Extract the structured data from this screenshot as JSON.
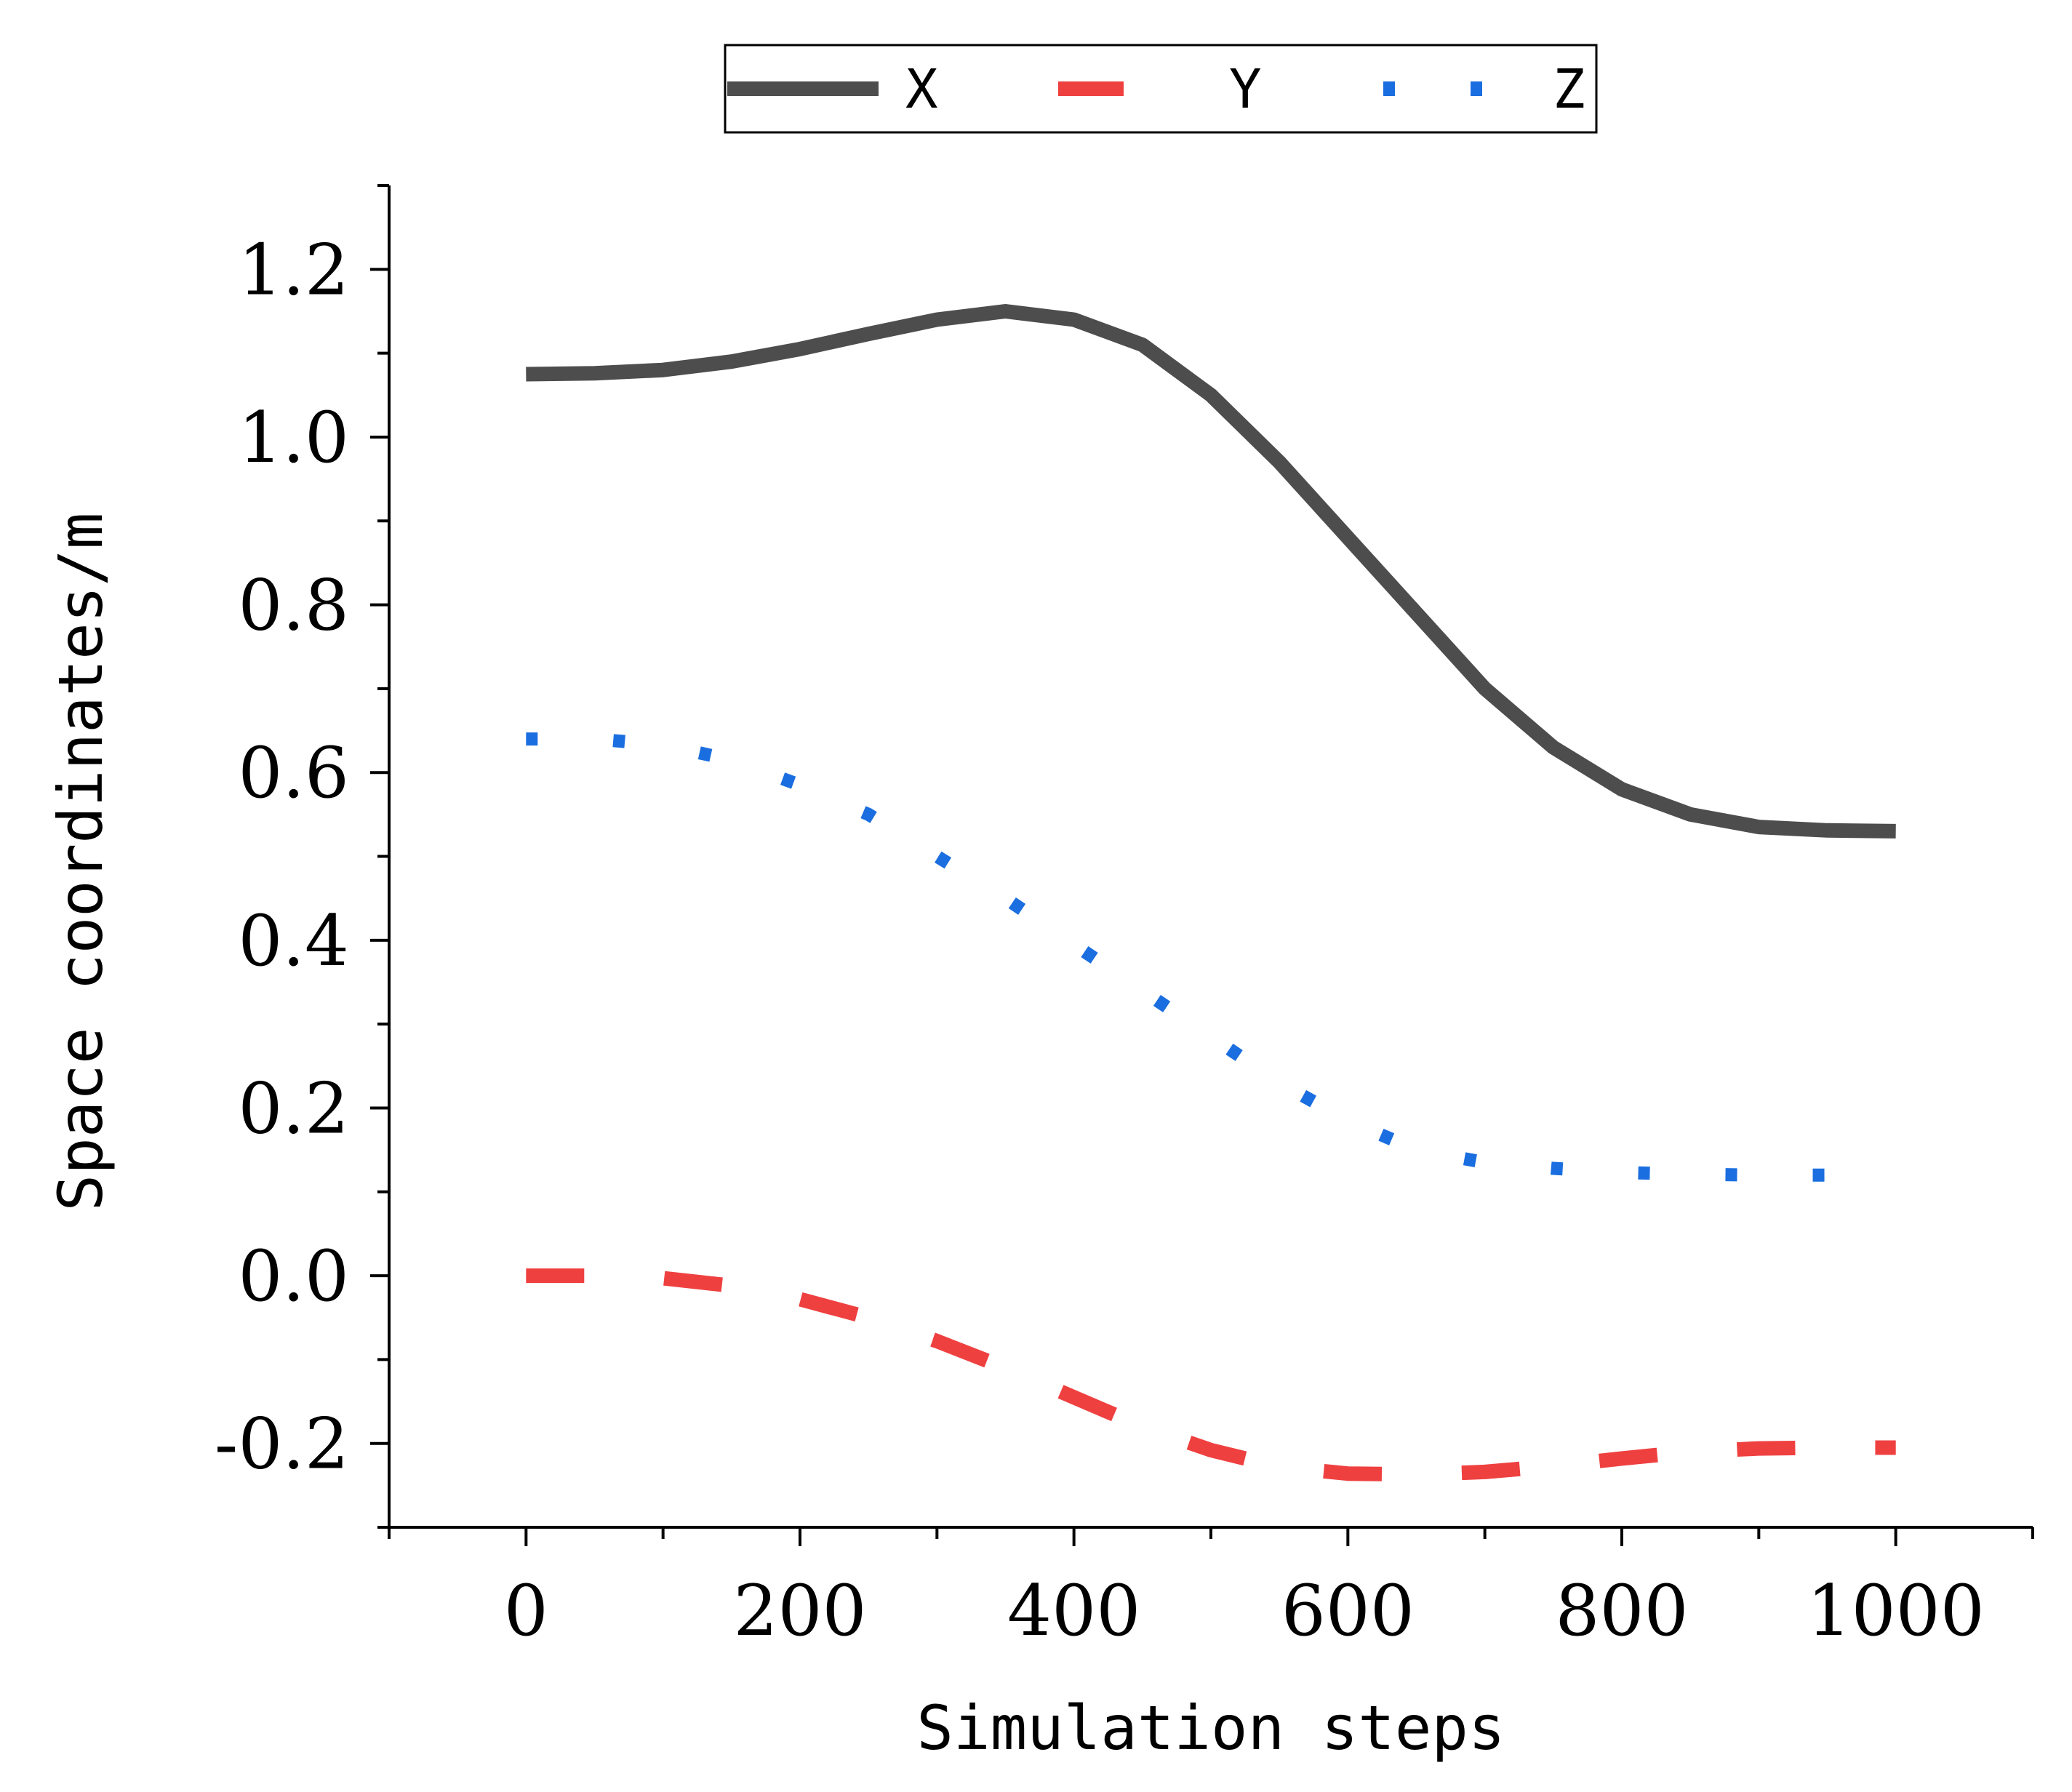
{
  "chart_data": {
    "type": "line",
    "title": "",
    "xlabel": "Simulation steps",
    "ylabel": "Space coordinates/m",
    "xlim": [
      -100,
      1100
    ],
    "ylim": [
      -0.3,
      1.3
    ],
    "xticks": [
      0,
      200,
      400,
      600,
      800,
      1000
    ],
    "xtick_labels": [
      "0",
      "200",
      "400",
      "600",
      "800",
      "1000"
    ],
    "yticks": [
      -0.2,
      0.0,
      0.2,
      0.4,
      0.6,
      0.8,
      1.0,
      1.2
    ],
    "ytick_labels": [
      "-0.2",
      "0.0",
      "0.2",
      "0.4",
      "0.6",
      "0.8",
      "1.0",
      "1.2"
    ],
    "grid": false,
    "legend_position": "top-center",
    "x": [
      0,
      50,
      100,
      150,
      200,
      250,
      300,
      350,
      400,
      450,
      500,
      550,
      600,
      650,
      700,
      750,
      800,
      850,
      900,
      950,
      1000
    ],
    "series": [
      {
        "name": "X",
        "color": "#4d4d4d",
        "style": "solid",
        "values": [
          1.075,
          1.076,
          1.08,
          1.09,
          1.105,
          1.123,
          1.14,
          1.15,
          1.14,
          1.11,
          1.05,
          0.97,
          0.88,
          0.79,
          0.7,
          0.63,
          0.58,
          0.55,
          0.535,
          0.531,
          0.53
        ]
      },
      {
        "name": "Y",
        "color": "#ef4040",
        "style": "dash",
        "values": [
          0.0,
          0.0,
          -0.003,
          -0.012,
          -0.028,
          -0.05,
          -0.078,
          -0.11,
          -0.145,
          -0.18,
          -0.208,
          -0.228,
          -0.236,
          -0.237,
          -0.234,
          -0.227,
          -0.218,
          -0.21,
          -0.206,
          -0.205,
          -0.205
        ]
      },
      {
        "name": "Z",
        "color": "#1a6ee0",
        "style": "dot",
        "values": [
          0.64,
          0.64,
          0.633,
          0.615,
          0.585,
          0.55,
          0.5,
          0.45,
          0.395,
          0.34,
          0.285,
          0.23,
          0.185,
          0.15,
          0.135,
          0.128,
          0.123,
          0.121,
          0.12,
          0.12,
          0.12
        ]
      }
    ]
  }
}
